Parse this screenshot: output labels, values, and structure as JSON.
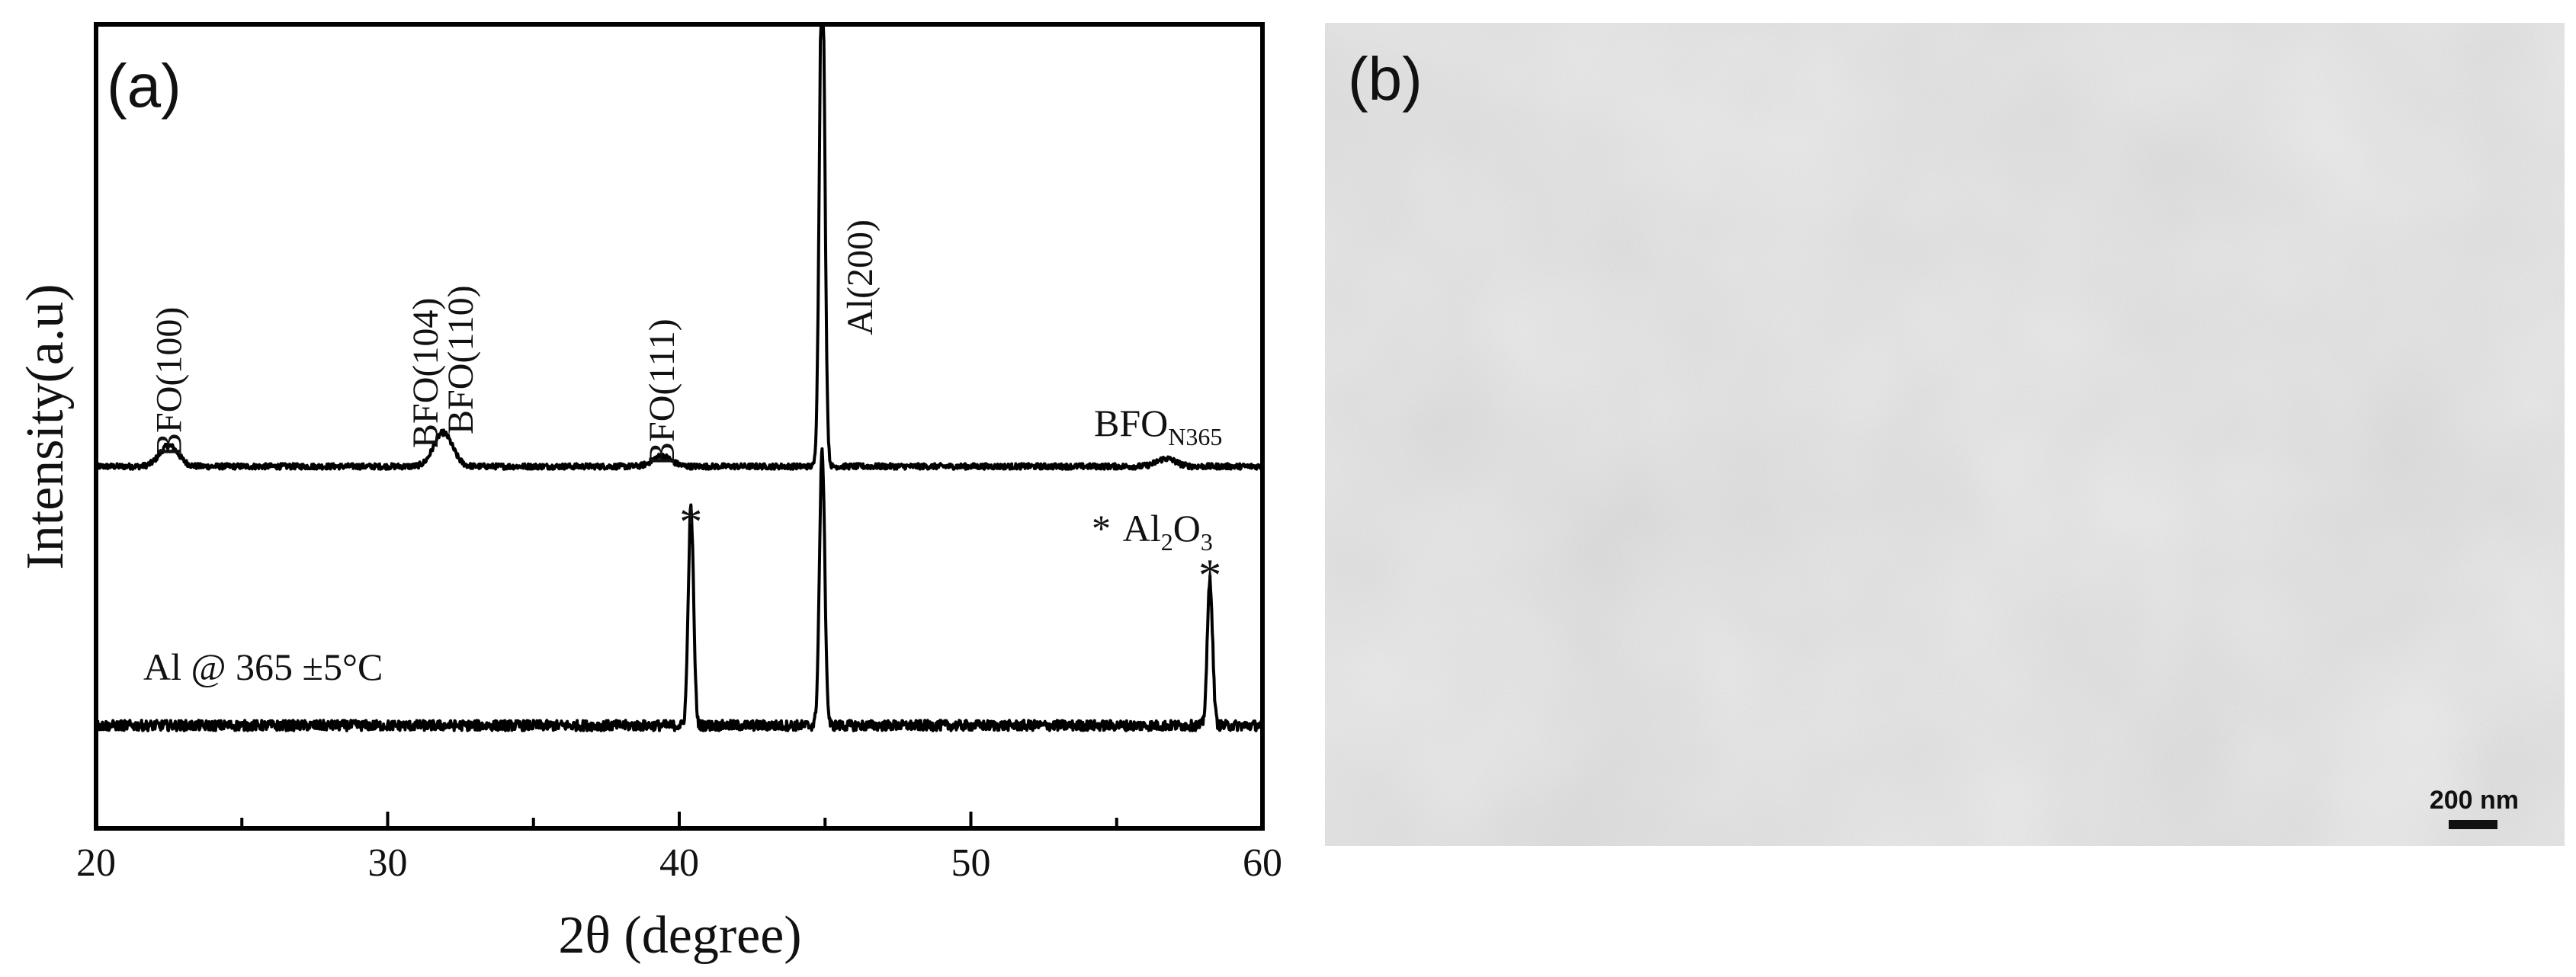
{
  "chart_data": {
    "type": "line",
    "panel_label": "(a)",
    "xlabel": "2θ (degree)",
    "ylabel": "Intensity(a.u)",
    "xlim": [
      20,
      60
    ],
    "xticks": [
      "20",
      "30",
      "40",
      "50",
      "60"
    ],
    "y_ticks_shown": false,
    "grid": false,
    "legend": "none",
    "series": [
      {
        "name": "BFO_N365",
        "label_main": "BFO",
        "label_sub": "N365",
        "baseline": 0.0,
        "peaks": [
          {
            "x": 22.5,
            "height": 0.08
          },
          {
            "x": 31.9,
            "height": 0.13
          },
          {
            "x": 39.4,
            "height": 0.04
          },
          {
            "x": 44.9,
            "height": 2.06
          },
          {
            "x": 56.7,
            "height": 0.03
          }
        ]
      },
      {
        "name": "Al @ 365 ±5°C",
        "baseline": -1.0,
        "peaks": [
          {
            "x": 40.4,
            "height": 0.84
          },
          {
            "x": 44.9,
            "height": 1.06
          },
          {
            "x": 58.2,
            "height": 0.56
          }
        ]
      }
    ],
    "annotations": [
      {
        "text": "BFO(100)",
        "x": 22.5
      },
      {
        "text": "BFO(104)",
        "x": 31.3
      },
      {
        "text": "BFO(110)",
        "x": 32.5
      },
      {
        "text": "BFO(111)",
        "x": 39.4
      },
      {
        "text": "Al(200)",
        "x": 46.2
      },
      {
        "text": "*",
        "x": 40.4
      },
      {
        "text": "*",
        "x": 58.2
      }
    ],
    "legend_note": {
      "marker": "*",
      "main": "Al",
      "sub1": "2",
      "mid": "O",
      "sub2": "3"
    }
  },
  "sem_panel": {
    "panel_label": "(b)",
    "scale_bar_label": "200 nm"
  }
}
